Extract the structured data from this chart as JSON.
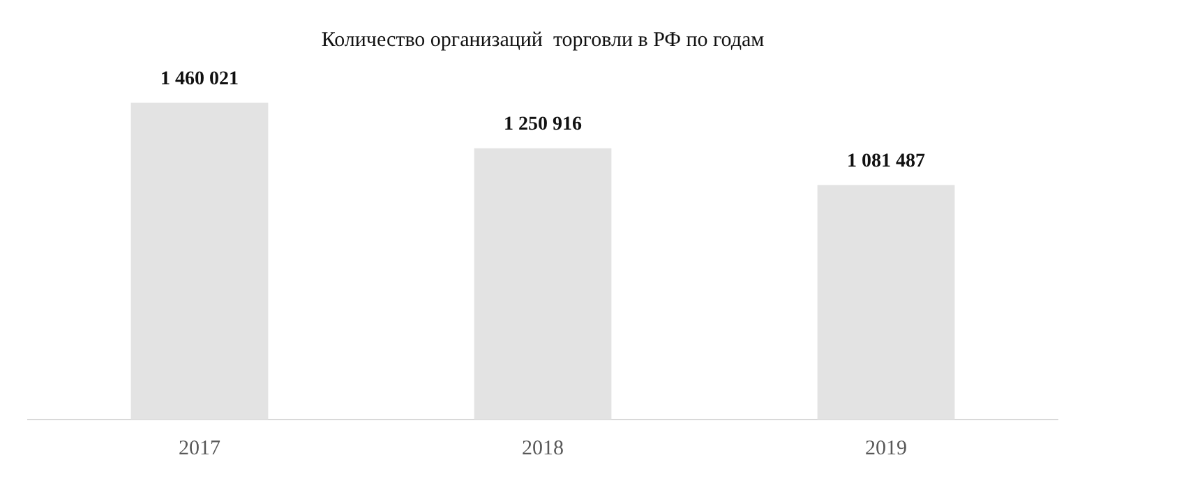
{
  "chart_data": {
    "type": "bar",
    "title": "Количество организаций  торговли в РФ по годам",
    "categories": [
      "2017",
      "2018",
      "2019"
    ],
    "values": [
      1460021,
      1250916,
      1081487
    ],
    "value_labels": [
      "1 460 021",
      "1 250 916",
      "1 081 487"
    ],
    "color": "#e3e3e3",
    "grid": false,
    "legend": false
  }
}
